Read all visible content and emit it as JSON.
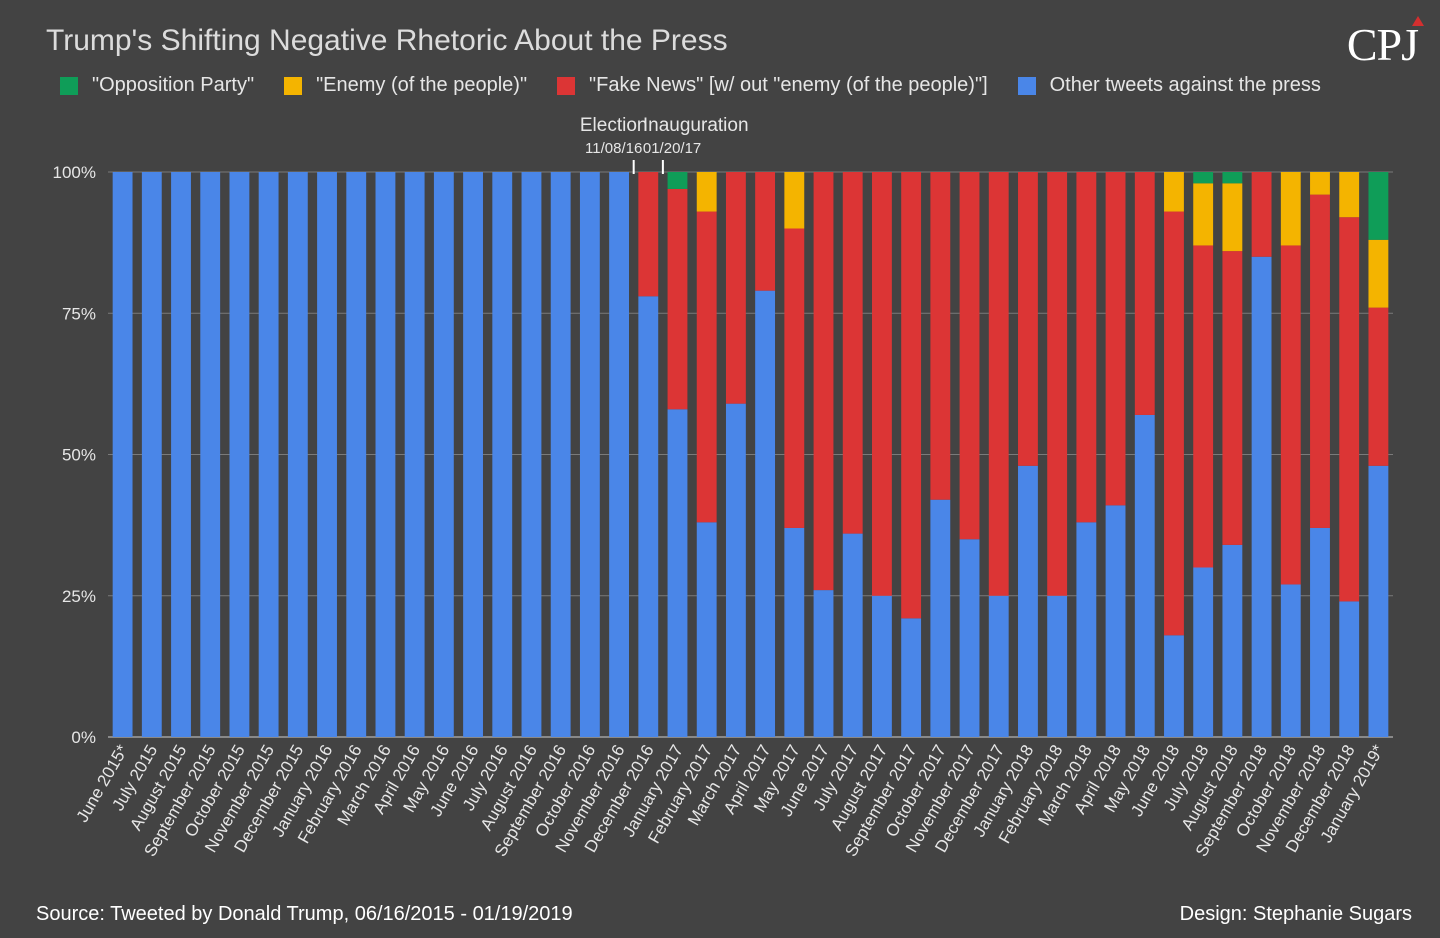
{
  "chart_data": {
    "type": "bar",
    "stacked": true,
    "title": "Trump's Shifting Negative Rhetoric About the Press",
    "ylim": [
      0,
      100
    ],
    "yticks": [
      "0%",
      "25%",
      "50%",
      "75%",
      "100%"
    ],
    "legend_position": "top-left",
    "categories": [
      "June 2015*",
      "July 2015",
      "August 2015",
      "September 2015",
      "October 2015",
      "November 2015",
      "December 2015",
      "January 2016",
      "February 2016",
      "March 2016",
      "April 2016",
      "May 2016",
      "June 2016",
      "July 2016",
      "August 2016",
      "September 2016",
      "October 2016",
      "November 2016",
      "December 2016",
      "January 2017",
      "February 2017",
      "March 2017",
      "April 2017",
      "May 2017",
      "June 2017",
      "July 2017",
      "August 2017",
      "September 2017",
      "October 2017",
      "November 2017",
      "December 2017",
      "January 2018",
      "February 2018",
      "March 2018",
      "April 2018",
      "May 2018",
      "June 2018",
      "July 2018",
      "August 2018",
      "September 2018",
      "October 2018",
      "November 2018",
      "December 2018",
      "January 2019*"
    ],
    "series": [
      {
        "name": "Other tweets against the press",
        "color": "#4a86e8",
        "values": [
          100,
          100,
          100,
          100,
          100,
          100,
          100,
          100,
          100,
          100,
          100,
          100,
          100,
          100,
          100,
          100,
          100,
          100,
          78,
          58,
          38,
          59,
          79,
          37,
          26,
          36,
          25,
          21,
          42,
          35,
          25,
          48,
          25,
          38,
          41,
          57,
          18,
          30,
          34,
          85,
          27,
          37,
          24,
          48
        ]
      },
      {
        "name": "\"Fake News\" [w/ out \"enemy (of the people)\"]",
        "color": "#dc3535",
        "values": [
          0,
          0,
          0,
          0,
          0,
          0,
          0,
          0,
          0,
          0,
          0,
          0,
          0,
          0,
          0,
          0,
          0,
          0,
          22,
          39,
          55,
          41,
          21,
          53,
          74,
          64,
          75,
          79,
          58,
          65,
          75,
          52,
          75,
          62,
          59,
          43,
          75,
          57,
          52,
          15,
          60,
          59,
          68,
          28
        ]
      },
      {
        "name": "\"Enemy (of the people)\"",
        "color": "#f4b400",
        "values": [
          0,
          0,
          0,
          0,
          0,
          0,
          0,
          0,
          0,
          0,
          0,
          0,
          0,
          0,
          0,
          0,
          0,
          0,
          0,
          0,
          7,
          0,
          0,
          10,
          0,
          0,
          0,
          0,
          0,
          0,
          0,
          0,
          0,
          0,
          0,
          0,
          7,
          11,
          12,
          0,
          13,
          4,
          8,
          12
        ]
      },
      {
        "name": "\"Opposition Party\"",
        "color": "#0f9d58",
        "values": [
          0,
          0,
          0,
          0,
          0,
          0,
          0,
          0,
          0,
          0,
          0,
          0,
          0,
          0,
          0,
          0,
          0,
          0,
          0,
          3,
          0,
          0,
          0,
          0,
          0,
          0,
          0,
          0,
          0,
          0,
          0,
          0,
          0,
          0,
          0,
          0,
          0,
          2,
          2,
          0,
          0,
          0,
          0,
          12
        ]
      }
    ],
    "legend_order": [
      "\"Opposition Party\"",
      "\"Enemy (of the people)\"",
      "\"Fake News\" [w/ out \"enemy (of the people)\"]",
      "Other tweets against the press"
    ],
    "annotations": [
      {
        "label": "Election",
        "date": "11/08/16",
        "after_category": "November 2016"
      },
      {
        "label": "Inauguration",
        "date": "01/20/17",
        "after_category": "December 2016"
      }
    ]
  },
  "logo": "CPJ",
  "footer": {
    "source": "Source: Tweeted by Donald Trump, 06/16/2015 - 01/19/2019",
    "design": "Design: Stephanie Sugars"
  },
  "colors": {
    "background": "#434343",
    "grid": "#7a7a7a",
    "text": "#e8e8e8"
  }
}
